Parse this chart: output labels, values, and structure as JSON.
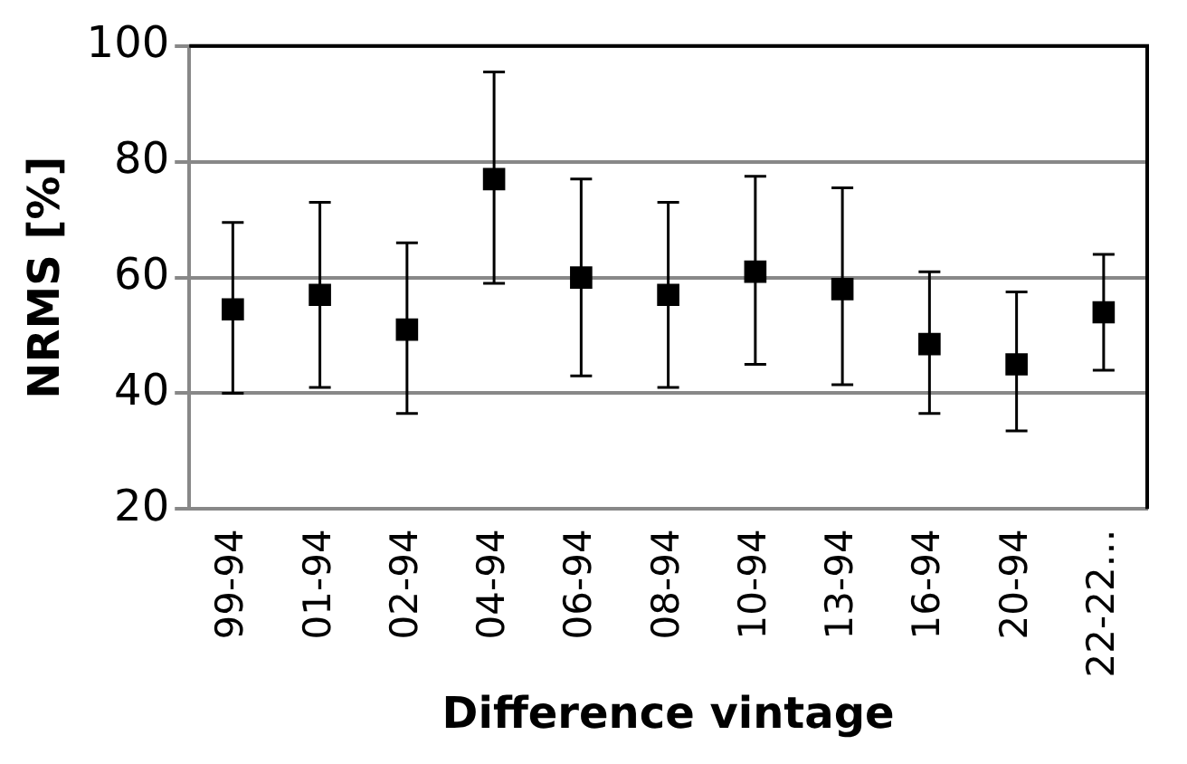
{
  "chart_data": {
    "type": "scatter",
    "xlabel": "Difference vintage",
    "ylabel": "NRMS [%]",
    "categories": [
      "99-94",
      "01-94",
      "02-94",
      "04-94",
      "06-94",
      "08-94",
      "10-94",
      "13-94",
      "16-94",
      "20-94",
      "22-22…"
    ],
    "series": [
      {
        "color": "#000000",
        "values": [
          54.5,
          57,
          51,
          77,
          60,
          57,
          61,
          58,
          48.5,
          45,
          54
        ],
        "errors": [
          [
            40,
            69.5
          ],
          [
            41,
            73
          ],
          [
            36.5,
            66
          ],
          [
            59,
            95.5
          ],
          [
            43,
            77
          ],
          [
            41,
            73
          ],
          [
            45,
            77.5
          ],
          [
            41.5,
            75.5
          ],
          [
            36.5,
            61
          ],
          [
            33.5,
            57.5
          ],
          [
            44,
            64
          ]
        ]
      }
    ],
    "ylim": [
      20,
      100
    ],
    "yticks": [
      20,
      40,
      60,
      80,
      100
    ],
    "grid": "y",
    "marker": "square",
    "legend": false
  }
}
